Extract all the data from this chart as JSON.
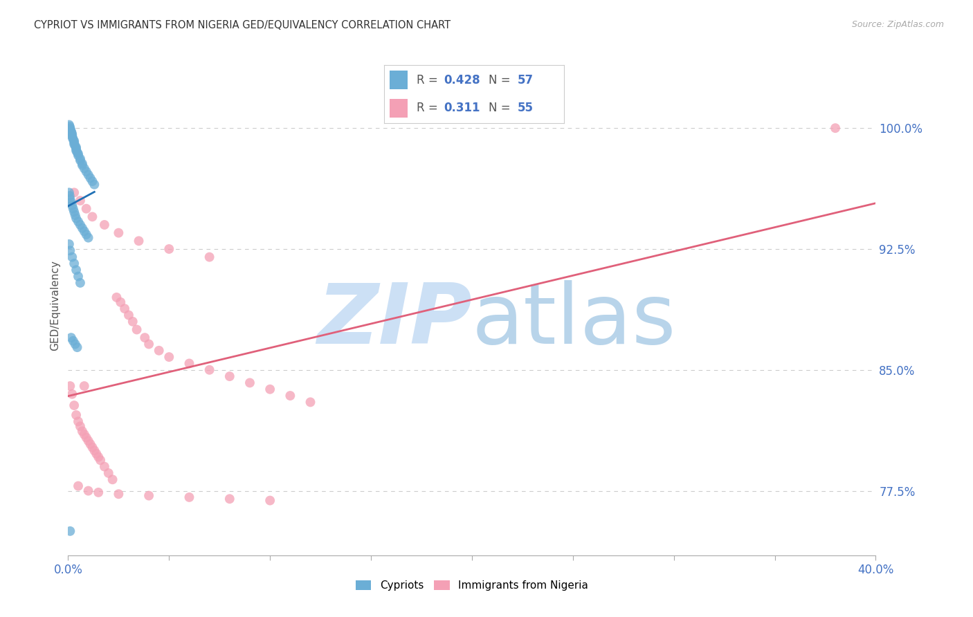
{
  "title": "CYPRIOT VS IMMIGRANTS FROM NIGERIA GED/EQUIVALENCY CORRELATION CHART",
  "source": "Source: ZipAtlas.com",
  "ylabel": "GED/Equivalency",
  "yticks": [
    0.775,
    0.85,
    0.925,
    1.0
  ],
  "ytick_labels": [
    "77.5%",
    "85.0%",
    "92.5%",
    "100.0%"
  ],
  "xmin": 0.0,
  "xmax": 0.4,
  "ymin": 0.735,
  "ymax": 1.045,
  "legend1_R": "0.428",
  "legend1_N": "57",
  "legend2_R": "0.311",
  "legend2_N": "55",
  "cypriot_color": "#6baed6",
  "nigeria_color": "#f4a0b5",
  "cypriot_line_color": "#2171b5",
  "nigeria_line_color": "#e0607a",
  "grid_color": "#cccccc",
  "background_color": "#ffffff",
  "title_color": "#333333",
  "source_color": "#aaaaaa",
  "axis_label_color": "#4472c4",
  "watermark_zip_color": "#cce0f5",
  "watermark_atlas_color": "#b8d4ea",
  "cypriot_x": [
    0.0005,
    0.0008,
    0.001,
    0.0012,
    0.0015,
    0.0018,
    0.002,
    0.002,
    0.0022,
    0.0025,
    0.003,
    0.003,
    0.003,
    0.0035,
    0.004,
    0.004,
    0.004,
    0.0045,
    0.005,
    0.005,
    0.006,
    0.006,
    0.007,
    0.007,
    0.008,
    0.009,
    0.01,
    0.011,
    0.012,
    0.013,
    0.0005,
    0.0008,
    0.001,
    0.0015,
    0.002,
    0.0025,
    0.003,
    0.0035,
    0.004,
    0.005,
    0.006,
    0.007,
    0.008,
    0.009,
    0.01,
    0.0005,
    0.001,
    0.002,
    0.003,
    0.004,
    0.005,
    0.006,
    0.0015,
    0.0025,
    0.0035,
    0.0045,
    0.001
  ],
  "cypriot_y": [
    1.002,
    1.001,
    1.0,
    0.999,
    0.998,
    0.997,
    0.996,
    0.995,
    0.994,
    0.993,
    0.992,
    0.991,
    0.99,
    0.989,
    0.988,
    0.987,
    0.986,
    0.985,
    0.984,
    0.983,
    0.981,
    0.98,
    0.978,
    0.977,
    0.975,
    0.973,
    0.971,
    0.969,
    0.967,
    0.965,
    0.96,
    0.958,
    0.956,
    0.954,
    0.952,
    0.95,
    0.948,
    0.946,
    0.944,
    0.942,
    0.94,
    0.938,
    0.936,
    0.934,
    0.932,
    0.928,
    0.924,
    0.92,
    0.916,
    0.912,
    0.908,
    0.904,
    0.87,
    0.868,
    0.866,
    0.864,
    0.75
  ],
  "nigeria_x": [
    0.001,
    0.002,
    0.003,
    0.004,
    0.005,
    0.006,
    0.007,
    0.008,
    0.009,
    0.01,
    0.011,
    0.012,
    0.013,
    0.014,
    0.015,
    0.016,
    0.018,
    0.02,
    0.022,
    0.024,
    0.026,
    0.028,
    0.03,
    0.032,
    0.034,
    0.038,
    0.04,
    0.045,
    0.05,
    0.06,
    0.07,
    0.08,
    0.09,
    0.1,
    0.11,
    0.12,
    0.003,
    0.006,
    0.009,
    0.012,
    0.018,
    0.025,
    0.035,
    0.05,
    0.07,
    0.005,
    0.01,
    0.015,
    0.025,
    0.04,
    0.06,
    0.08,
    0.1,
    0.38,
    0.008
  ],
  "nigeria_y": [
    0.84,
    0.835,
    0.828,
    0.822,
    0.818,
    0.815,
    0.812,
    0.81,
    0.808,
    0.806,
    0.804,
    0.802,
    0.8,
    0.798,
    0.796,
    0.794,
    0.79,
    0.786,
    0.782,
    0.895,
    0.892,
    0.888,
    0.884,
    0.88,
    0.875,
    0.87,
    0.866,
    0.862,
    0.858,
    0.854,
    0.85,
    0.846,
    0.842,
    0.838,
    0.834,
    0.83,
    0.96,
    0.955,
    0.95,
    0.945,
    0.94,
    0.935,
    0.93,
    0.925,
    0.92,
    0.778,
    0.775,
    0.774,
    0.773,
    0.772,
    0.771,
    0.77,
    0.769,
    1.0,
    0.84
  ]
}
